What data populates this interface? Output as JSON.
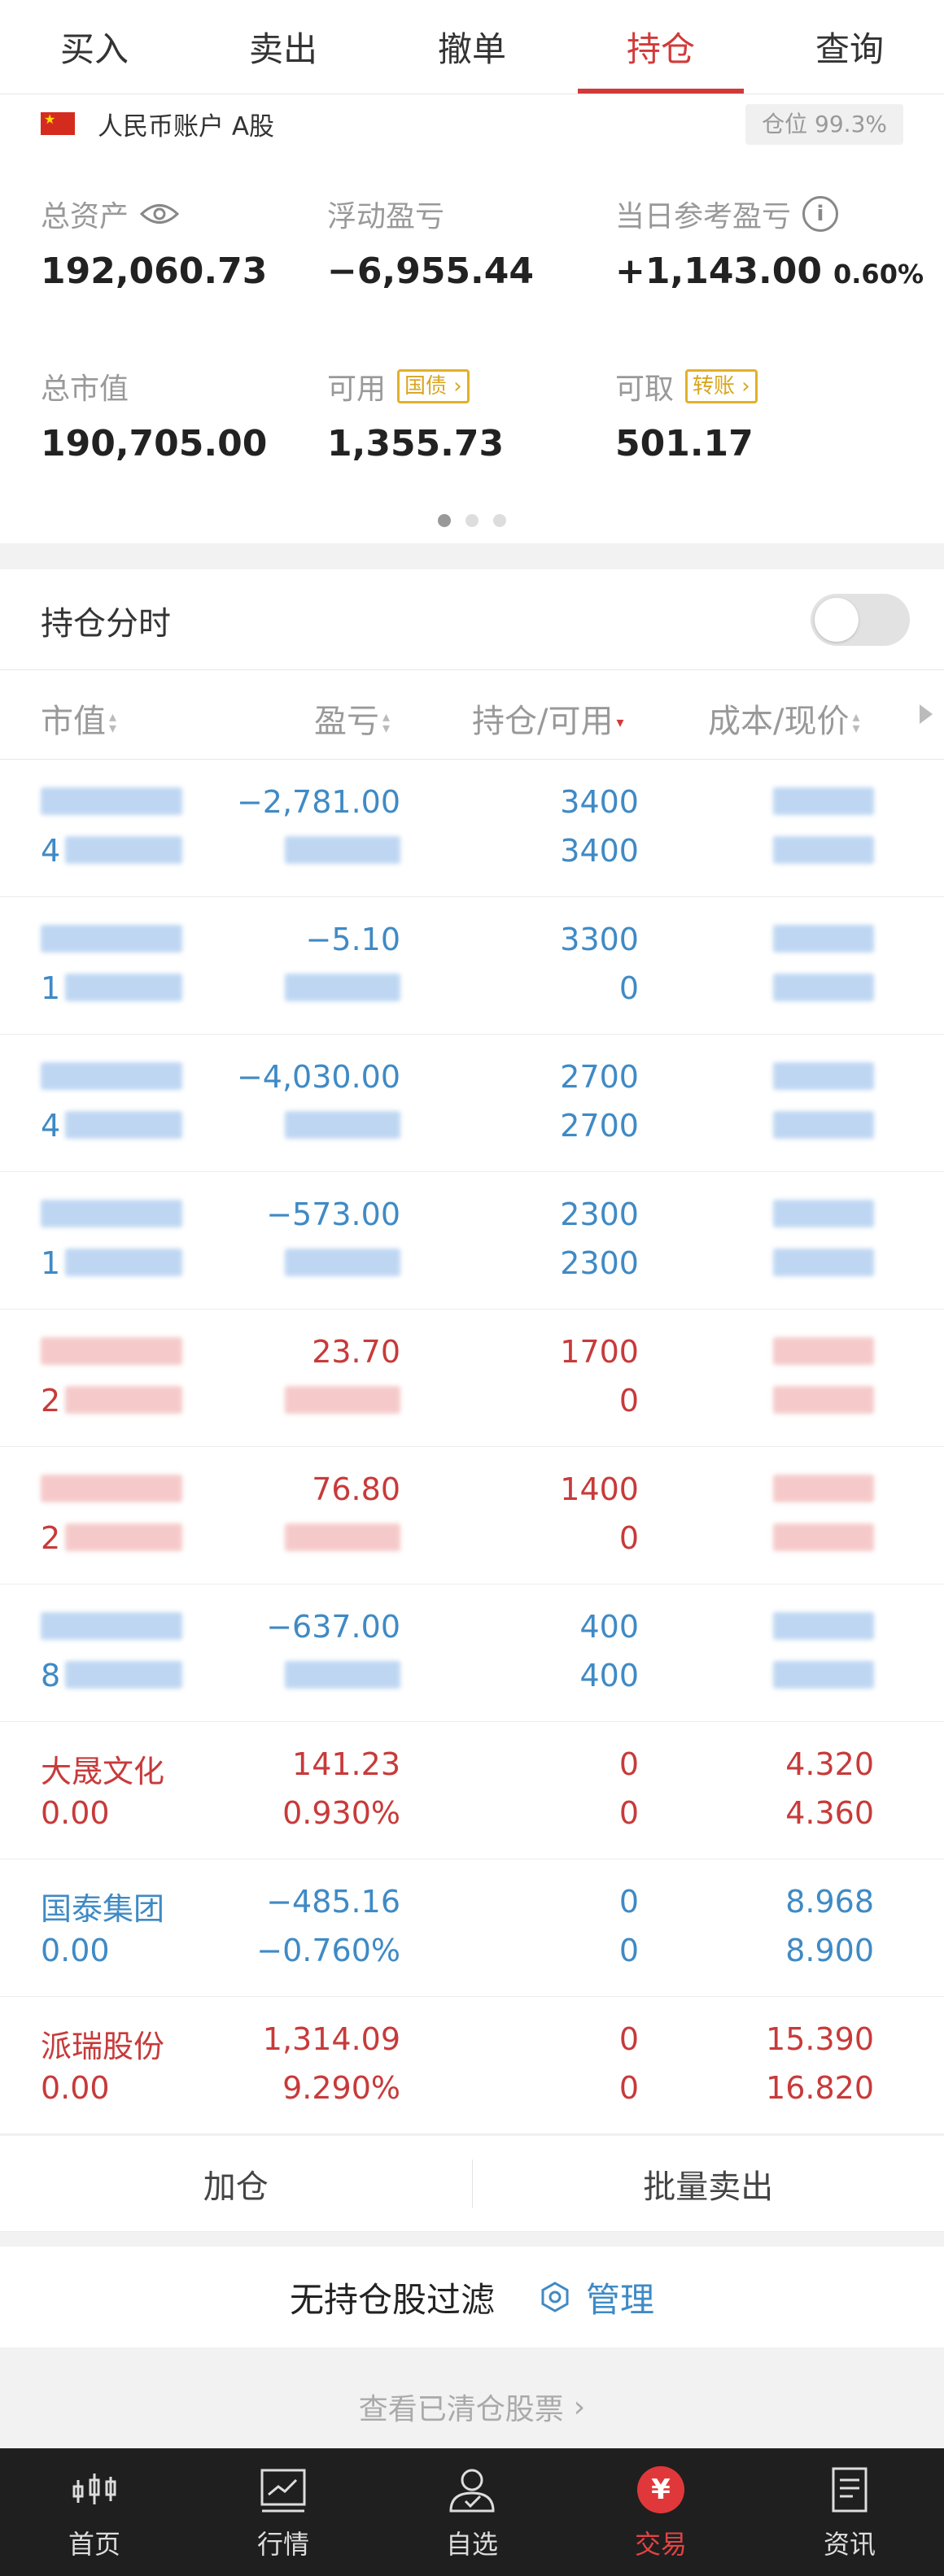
{
  "tabs": [
    "买入",
    "卖出",
    "撤单",
    "持仓",
    "查询"
  ],
  "active_tab": "持仓",
  "account": {
    "name": "人民币账户 A股",
    "position_ratio": "仓位 99.3%"
  },
  "summary": {
    "total_assets_label": "总资产",
    "total_assets": "192,060.73",
    "floating_pl_label": "浮动盈亏",
    "floating_pl": "−6,955.44",
    "daily_pl_label": "当日参考盈亏",
    "daily_pl": "+1,143.00",
    "daily_pl_pct": "0.60%",
    "market_value_label": "总市值",
    "market_value": "190,705.00",
    "available_label": "可用",
    "available_tag": "国债",
    "available": "1,355.73",
    "withdrawable_label": "可取",
    "withdrawable_tag": "转账",
    "withdrawable": "501.17",
    "page_count": 3,
    "page_active": 1
  },
  "fenshi": {
    "label": "持仓分时",
    "enabled": false
  },
  "table": {
    "headers": [
      "市值",
      "盈亏",
      "持仓/可用",
      "成本/现价"
    ],
    "rows": [
      {
        "color": "blue",
        "name": "",
        "value": "",
        "pl": "−2,781.00",
        "pl_pct": "",
        "qty": "3400",
        "avail": "3400",
        "cost": "",
        "price": "",
        "name_hint": "4"
      },
      {
        "color": "blue",
        "name": "",
        "value": "",
        "pl": "−5.10",
        "pl_pct": "",
        "qty": "3300",
        "avail": "0",
        "cost": "",
        "price": "",
        "name_hint": "1"
      },
      {
        "color": "blue",
        "name": "",
        "value": "",
        "pl": "−4,030.00",
        "pl_pct": "",
        "qty": "2700",
        "avail": "2700",
        "cost": "",
        "price": "",
        "name_hint": "4"
      },
      {
        "color": "blue",
        "name": "",
        "value": "",
        "pl": "−573.00",
        "pl_pct": "",
        "qty": "2300",
        "avail": "2300",
        "cost": "",
        "price": "",
        "name_hint": "1"
      },
      {
        "color": "red",
        "name": "",
        "value": "",
        "pl": "23.70",
        "pl_pct": "",
        "qty": "1700",
        "avail": "0",
        "cost": "",
        "price": "",
        "name_hint": "2"
      },
      {
        "color": "red",
        "name": "",
        "value": "",
        "pl": "76.80",
        "pl_pct": "",
        "qty": "1400",
        "avail": "0",
        "cost": "",
        "price": "",
        "name_hint": "2"
      },
      {
        "color": "blue",
        "name": "",
        "value": "",
        "pl": "−637.00",
        "pl_pct": "",
        "qty": "400",
        "avail": "400",
        "cost": "",
        "price": "",
        "name_hint": "8"
      },
      {
        "color": "red",
        "name": "大晟文化",
        "value": "0.00",
        "pl": "141.23",
        "pl_pct": "0.930%",
        "qty": "0",
        "avail": "0",
        "cost": "4.320",
        "price": "4.360",
        "name_hint": ""
      },
      {
        "color": "blue",
        "name": "国泰集团",
        "value": "0.00",
        "pl": "−485.16",
        "pl_pct": "−0.760%",
        "qty": "0",
        "avail": "0",
        "cost": "8.968",
        "price": "8.900",
        "name_hint": ""
      },
      {
        "color": "red",
        "name": "派瑞股份",
        "value": "0.00",
        "pl": "1,314.09",
        "pl_pct": "9.290%",
        "qty": "0",
        "avail": "0",
        "cost": "15.390",
        "price": "16.820",
        "name_hint": ""
      }
    ]
  },
  "actions": {
    "add": "加仓",
    "batch_sell": "批量卖出"
  },
  "filter": {
    "text": "无持仓股过滤",
    "manage": "管理"
  },
  "cleared_link": "查看已清仓股票",
  "bottom_nav": [
    {
      "label": "首页",
      "icon": "candlestick-icon"
    },
    {
      "label": "行情",
      "icon": "chart-icon"
    },
    {
      "label": "自选",
      "icon": "user-check-icon"
    },
    {
      "label": "交易",
      "icon": "yen-icon"
    },
    {
      "label": "资讯",
      "icon": "document-icon"
    }
  ],
  "colors": {
    "red": "#c83a3a",
    "blue": "#3f8ac5",
    "accent": "#d23a3a",
    "tag_yellow": "#d9a520"
  }
}
